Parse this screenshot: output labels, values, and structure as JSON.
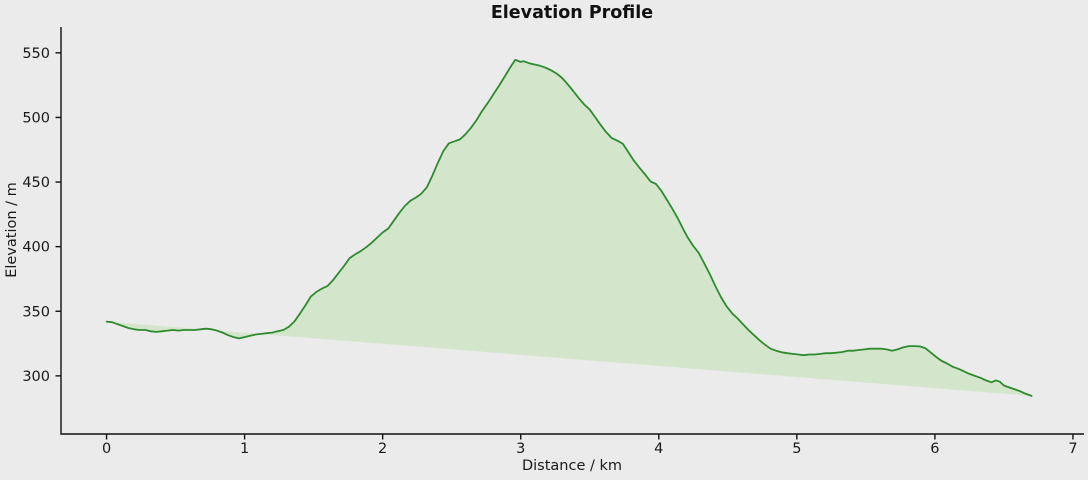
{
  "chart_data": {
    "type": "area",
    "title": "Elevation Profile",
    "xlabel": "Distance / km",
    "ylabel": "Elevation / m",
    "grid": false,
    "legend": false,
    "line_color": "#2e8b2e",
    "fill_color": "#d3e6cb",
    "background_color": "#ebebeb",
    "text_color": "#1a1a1a",
    "spine_color": "#111111",
    "xlim": [
      -0.33,
      7.08
    ],
    "ylim": [
      255,
      570
    ],
    "fill_baseline": 270,
    "xticks": [
      0,
      1,
      2,
      3,
      4,
      5,
      6,
      7
    ],
    "yticks": [
      300,
      350,
      400,
      450,
      500,
      550
    ],
    "x": [
      0.0,
      0.04,
      0.08,
      0.12,
      0.16,
      0.2,
      0.24,
      0.28,
      0.32,
      0.36,
      0.4,
      0.44,
      0.48,
      0.52,
      0.56,
      0.6,
      0.64,
      0.68,
      0.72,
      0.76,
      0.8,
      0.84,
      0.88,
      0.92,
      0.96,
      1.0,
      1.04,
      1.08,
      1.12,
      1.16,
      1.2,
      1.24,
      1.28,
      1.32,
      1.36,
      1.4,
      1.44,
      1.48,
      1.52,
      1.56,
      1.6,
      1.64,
      1.68,
      1.72,
      1.76,
      1.8,
      1.84,
      1.88,
      1.92,
      1.96,
      2.0,
      2.04,
      2.08,
      2.12,
      2.16,
      2.2,
      2.24,
      2.28,
      2.32,
      2.36,
      2.4,
      2.44,
      2.48,
      2.52,
      2.56,
      2.6,
      2.64,
      2.68,
      2.72,
      2.76,
      2.8,
      2.84,
      2.88,
      2.92,
      2.96,
      3.0,
      3.02,
      3.06,
      3.1,
      3.14,
      3.18,
      3.22,
      3.26,
      3.3,
      3.33,
      3.38,
      3.42,
      3.46,
      3.5,
      3.54,
      3.58,
      3.62,
      3.66,
      3.7,
      3.74,
      3.78,
      3.82,
      3.86,
      3.9,
      3.94,
      3.98,
      4.02,
      4.06,
      4.1,
      4.14,
      4.18,
      4.21,
      4.25,
      4.29,
      4.33,
      4.37,
      4.41,
      4.45,
      4.49,
      4.53,
      4.57,
      4.61,
      4.65,
      4.69,
      4.73,
      4.77,
      4.81,
      4.85,
      4.89,
      4.93,
      4.97,
      5.01,
      5.05,
      5.09,
      5.13,
      5.17,
      5.21,
      5.25,
      5.29,
      5.33,
      5.37,
      5.41,
      5.45,
      5.49,
      5.53,
      5.57,
      5.61,
      5.65,
      5.69,
      5.73,
      5.77,
      5.81,
      5.85,
      5.89,
      5.93,
      5.97,
      6.01,
      6.05,
      6.09,
      6.13,
      6.17,
      6.21,
      6.25,
      6.29,
      6.33,
      6.37,
      6.41,
      6.44,
      6.47,
      6.5,
      6.54,
      6.58,
      6.62,
      6.66,
      6.7,
      6.74
    ],
    "y": [
      342,
      341.5,
      340,
      338.5,
      337,
      336,
      335.5,
      335.5,
      334.5,
      334,
      334.5,
      335,
      335.5,
      335,
      335.5,
      335.5,
      335.5,
      336,
      336.5,
      336,
      335,
      333.5,
      331.5,
      330,
      329,
      330,
      331,
      332,
      332.5,
      333,
      333.5,
      334.5,
      335.5,
      338,
      342,
      348,
      354.5,
      361.5,
      365,
      367.5,
      369.5,
      374,
      379.5,
      385,
      391,
      394,
      396.5,
      399.5,
      403,
      407,
      411,
      414,
      420,
      426,
      431.5,
      435.5,
      438,
      441,
      446,
      455,
      465,
      474,
      480,
      481.5,
      483,
      487,
      492,
      498,
      505,
      511,
      517.5,
      524,
      531,
      538,
      544.5,
      543,
      543.5,
      542,
      541,
      540,
      538.5,
      536.5,
      534,
      530.5,
      527,
      520.5,
      515,
      510,
      506,
      500,
      494,
      488.5,
      484,
      482,
      479.5,
      473,
      466.5,
      461,
      456,
      450.5,
      448.5,
      443,
      436,
      429,
      421.5,
      413,
      407,
      400.5,
      395,
      387,
      378.5,
      369.5,
      361,
      354,
      348.5,
      344.5,
      340,
      335.5,
      331.5,
      327.5,
      324,
      321,
      319.5,
      318.2,
      317.5,
      317,
      316.5,
      316,
      316.5,
      316.5,
      317,
      317.5,
      317.5,
      318,
      318.5,
      319.5,
      319.5,
      320,
      320.5,
      321,
      321,
      321,
      320.5,
      319.5,
      320.5,
      322,
      323,
      323,
      322.8,
      321.5,
      318,
      314.5,
      311.5,
      309.5,
      307,
      305.5,
      303.5,
      301.5,
      300,
      298.5,
      296.5,
      295,
      296.5,
      295.5,
      292.5,
      291,
      289.5,
      288,
      286,
      284.5
    ]
  }
}
